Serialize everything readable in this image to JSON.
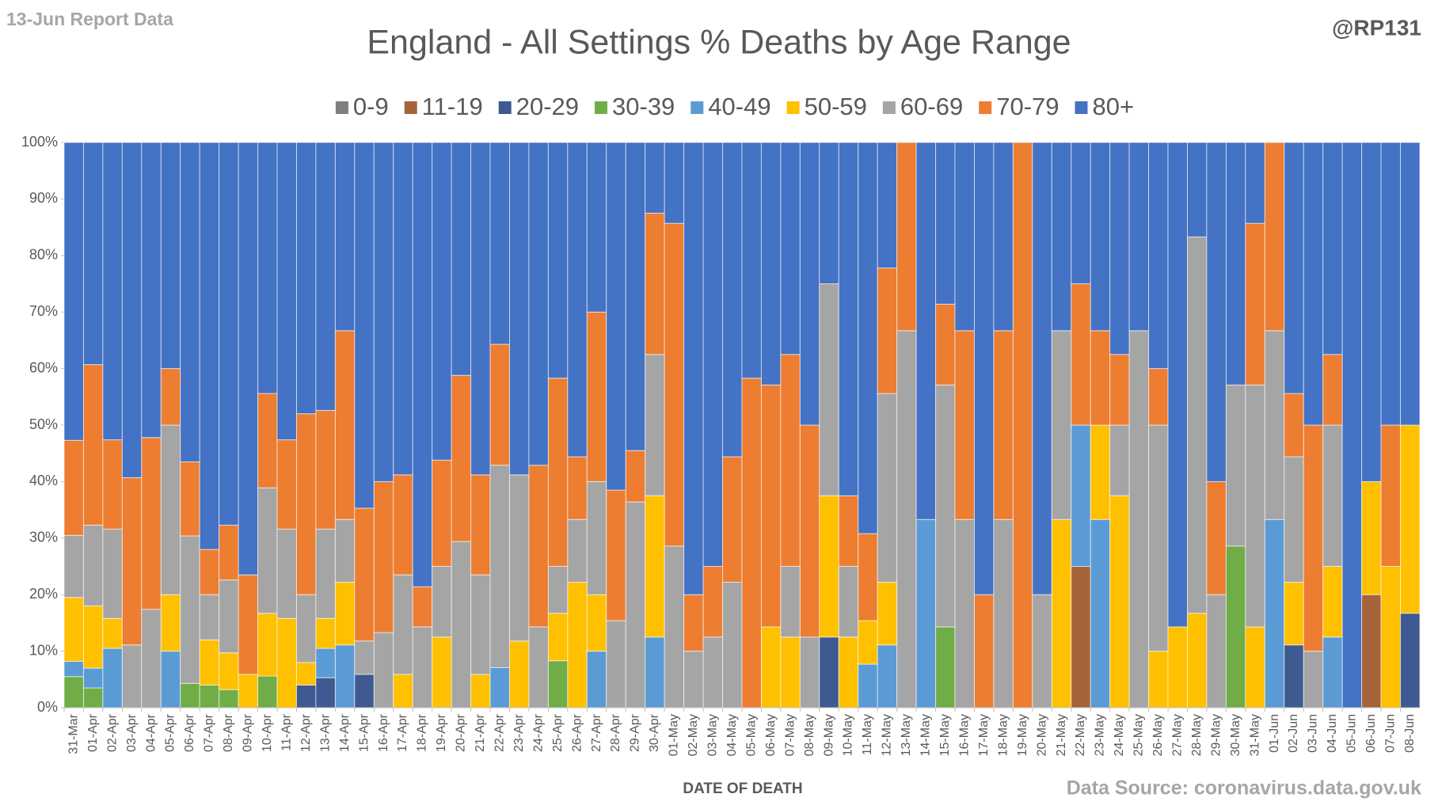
{
  "chart_data": {
    "type": "stacked_bar_100",
    "title": "England - All Settings % Deaths by Age Range",
    "report_note": "13-Jun Report Data",
    "author": "@RP131",
    "x_label": "DATE OF DEATH",
    "source": "Data Source: coronavirus.data.gov.uk",
    "legend": "top",
    "categories": [
      "31-Mar",
      "01-Apr",
      "02-Apr",
      "03-Apr",
      "04-Apr",
      "05-Apr",
      "06-Apr",
      "07-Apr",
      "08-Apr",
      "09-Apr",
      "10-Apr",
      "11-Apr",
      "12-Apr",
      "13-Apr",
      "14-Apr",
      "15-Apr",
      "16-Apr",
      "17-Apr",
      "18-Apr",
      "19-Apr",
      "20-Apr",
      "21-Apr",
      "22-Apr",
      "23-Apr",
      "24-Apr",
      "25-Apr",
      "26-Apr",
      "27-Apr",
      "28-Apr",
      "29-Apr",
      "30-Apr",
      "01-May",
      "02-May",
      "03-May",
      "04-May",
      "05-May",
      "06-May",
      "07-May",
      "08-May",
      "09-May",
      "10-May",
      "11-May",
      "12-May",
      "13-May",
      "14-May",
      "15-May",
      "16-May",
      "17-May",
      "18-May",
      "19-May",
      "20-May",
      "21-May",
      "22-May",
      "23-May",
      "24-May",
      "25-May",
      "26-May",
      "27-May",
      "28-May",
      "29-May",
      "30-May",
      "31-May",
      "01-Jun",
      "02-Jun",
      "03-Jun",
      "04-Jun",
      "05-Jun",
      "06-Jun",
      "07-Jun",
      "08-Jun"
    ],
    "ylim": [
      0,
      100
    ],
    "yticks": [
      {
        "value": 0,
        "label": "0%"
      },
      {
        "value": 10,
        "label": "10%"
      },
      {
        "value": 20,
        "label": "20%"
      },
      {
        "value": 30,
        "label": "30%"
      },
      {
        "value": 40,
        "label": "40%"
      },
      {
        "value": 50,
        "label": "50%"
      },
      {
        "value": 60,
        "label": "60%"
      },
      {
        "value": 70,
        "label": "70%"
      },
      {
        "value": 80,
        "label": "80%"
      },
      {
        "value": 90,
        "label": "90%"
      },
      {
        "value": 100,
        "label": "100%"
      }
    ],
    "series": [
      {
        "name": "0-9",
        "color": "#7f7f7f",
        "values": [
          0,
          0,
          0,
          0,
          0,
          0,
          0,
          0,
          0,
          0,
          0,
          0,
          0,
          0,
          0,
          0,
          0,
          0,
          0,
          0,
          0,
          0,
          0,
          0,
          0,
          0,
          0,
          0,
          0,
          0,
          0,
          0,
          0,
          0,
          0,
          0,
          0,
          0,
          0,
          0,
          0,
          0,
          0,
          0,
          0,
          0,
          0,
          0,
          0,
          0,
          0,
          0,
          0,
          0,
          0,
          0,
          0,
          0,
          0,
          0,
          0,
          0,
          0,
          0,
          0,
          0,
          0,
          0,
          0,
          0
        ]
      },
      {
        "name": "11-19",
        "color": "#a5643a",
        "values": [
          0,
          0,
          0,
          0,
          0,
          0,
          0,
          0,
          0,
          0,
          0,
          0,
          0,
          0,
          0,
          0,
          0,
          0,
          0,
          0,
          0,
          0,
          0,
          0,
          0,
          0,
          0,
          0,
          0,
          0,
          0,
          0,
          0,
          0,
          0,
          0,
          0,
          0,
          0,
          0,
          0,
          0,
          0,
          0,
          0,
          0,
          0,
          0,
          0,
          0,
          0,
          0,
          25,
          0,
          0,
          0,
          0,
          0,
          0,
          0,
          0,
          0,
          0,
          0,
          0,
          0,
          0,
          20,
          0,
          0
        ]
      },
      {
        "name": "20-29",
        "color": "#3e5a91",
        "values": [
          0,
          0,
          0,
          0,
          0,
          0,
          0,
          0,
          0,
          0,
          0,
          0,
          4,
          5.3,
          0,
          5.9,
          0,
          0,
          0,
          0,
          0,
          0,
          0,
          0,
          0,
          0,
          0,
          0,
          0,
          0,
          0,
          0,
          0,
          0,
          0,
          0,
          0,
          0,
          0,
          12.5,
          0,
          0,
          0,
          0,
          0,
          0,
          0,
          0,
          0,
          0,
          0,
          0,
          0,
          0,
          0,
          0,
          0,
          0,
          0,
          0,
          0,
          0,
          0,
          11.1,
          0,
          0,
          0,
          0,
          0,
          16.7
        ]
      },
      {
        "name": "30-39",
        "color": "#70ad47",
        "values": [
          5.5,
          3.5,
          0,
          0,
          0,
          0,
          4.3,
          4,
          3.2,
          0,
          5.6,
          0,
          0,
          0,
          0,
          0,
          0,
          0,
          0,
          0,
          0,
          0,
          0,
          0,
          0,
          8.3,
          0,
          0,
          0,
          0,
          0,
          0,
          0,
          0,
          0,
          0,
          0,
          0,
          0,
          0,
          0,
          0,
          0,
          0,
          0,
          14.3,
          0,
          0,
          0,
          0,
          0,
          0,
          0,
          0,
          0,
          0,
          0,
          0,
          0,
          0,
          28.6,
          0,
          0,
          0,
          0,
          0,
          0,
          0,
          0,
          0
        ]
      },
      {
        "name": "40-49",
        "color": "#5b9bd5",
        "values": [
          2.7,
          3.5,
          10.5,
          0,
          0,
          10,
          0,
          0,
          0,
          0,
          0,
          0,
          0,
          5.2,
          11.1,
          0,
          0,
          0,
          0,
          0,
          0,
          0,
          7.1,
          0,
          0,
          0,
          0,
          10,
          0,
          0,
          12.5,
          0,
          0,
          0,
          0,
          0,
          0,
          0,
          0,
          0,
          0,
          7.7,
          11.1,
          0,
          33.3,
          0,
          0,
          0,
          0,
          0,
          0,
          0,
          25,
          33.3,
          0,
          0,
          0,
          0,
          0,
          0,
          0,
          0,
          33.3,
          0,
          0,
          12.5,
          0,
          0,
          0,
          0
        ]
      },
      {
        "name": "50-59",
        "color": "#ffc000",
        "values": [
          11.3,
          11,
          5.3,
          0,
          0,
          10,
          0,
          8,
          6.5,
          5.9,
          11.1,
          15.8,
          4,
          5.3,
          11.1,
          0,
          0,
          5.9,
          0,
          12.5,
          0,
          5.9,
          0,
          11.8,
          0,
          8.4,
          22.2,
          10,
          0,
          0,
          25,
          0,
          0,
          0,
          0,
          0,
          14.3,
          12.5,
          0,
          25,
          12.5,
          7.7,
          11.1,
          0,
          0,
          0,
          0,
          0,
          0,
          0,
          0,
          33.3,
          0,
          16.7,
          37.5,
          0,
          10,
          14.3,
          16.7,
          0,
          0,
          14.3,
          0,
          11.1,
          0,
          12.5,
          0,
          20,
          25,
          33.3
        ]
      },
      {
        "name": "60-69",
        "color": "#a5a5a5",
        "values": [
          11,
          14.3,
          15.8,
          11.1,
          17.4,
          30,
          26.1,
          8,
          12.9,
          0,
          22.2,
          15.8,
          12,
          15.8,
          11.1,
          5.9,
          13.3,
          17.6,
          14.3,
          12.5,
          29.4,
          17.6,
          35.8,
          29.4,
          14.3,
          8.3,
          11.1,
          20,
          15.4,
          36.4,
          25,
          28.6,
          10,
          12.5,
          22.2,
          0,
          0,
          12.5,
          12.5,
          37.5,
          12.5,
          0,
          33.4,
          66.7,
          0,
          42.8,
          33.3,
          0,
          33.3,
          0,
          20,
          33.4,
          0,
          0,
          12.5,
          66.7,
          40,
          0,
          66.6,
          20,
          28.5,
          42.8,
          33.4,
          22.2,
          10,
          25,
          0,
          0,
          0,
          0
        ]
      },
      {
        "name": "70-79",
        "color": "#ed7d31",
        "values": [
          16.8,
          28.4,
          15.8,
          29.6,
          30.4,
          10,
          13.1,
          8,
          9.7,
          17.6,
          16.7,
          15.8,
          32,
          21,
          33.4,
          23.5,
          26.7,
          17.7,
          7.1,
          18.8,
          29.4,
          17.7,
          21.4,
          0,
          28.6,
          33.3,
          11.1,
          30,
          23.1,
          9.1,
          25,
          57.1,
          10,
          12.5,
          22.2,
          58.3,
          42.8,
          37.5,
          37.5,
          0,
          12.5,
          15.4,
          22.2,
          33.3,
          0,
          14.3,
          33.4,
          20,
          33.4,
          100,
          0,
          0,
          25,
          16.7,
          12.5,
          0,
          10,
          0,
          0,
          20,
          0,
          28.6,
          33.3,
          11.2,
          40,
          12.5,
          0,
          0,
          25,
          0
        ]
      },
      {
        "name": "80+",
        "color": "#4472c4",
        "values": [
          52.7,
          39.3,
          52.6,
          59.3,
          52.2,
          40,
          56.5,
          72,
          67.7,
          76.5,
          44.4,
          52.6,
          48,
          47.4,
          33.3,
          64.7,
          60,
          58.8,
          78.6,
          56.2,
          41.2,
          58.8,
          35.7,
          58.8,
          57.1,
          41.7,
          55.6,
          30,
          61.5,
          54.5,
          12.5,
          14.3,
          80,
          75,
          55.6,
          41.7,
          42.9,
          37.5,
          50,
          25,
          62.5,
          69.2,
          22.2,
          0,
          66.7,
          28.6,
          33.3,
          80,
          33.3,
          0,
          80,
          33.3,
          25,
          33.3,
          37.5,
          33.3,
          40,
          85.7,
          16.7,
          60,
          42.9,
          14.3,
          0,
          44.4,
          50,
          37.5,
          100,
          60,
          50,
          50
        ]
      }
    ]
  }
}
